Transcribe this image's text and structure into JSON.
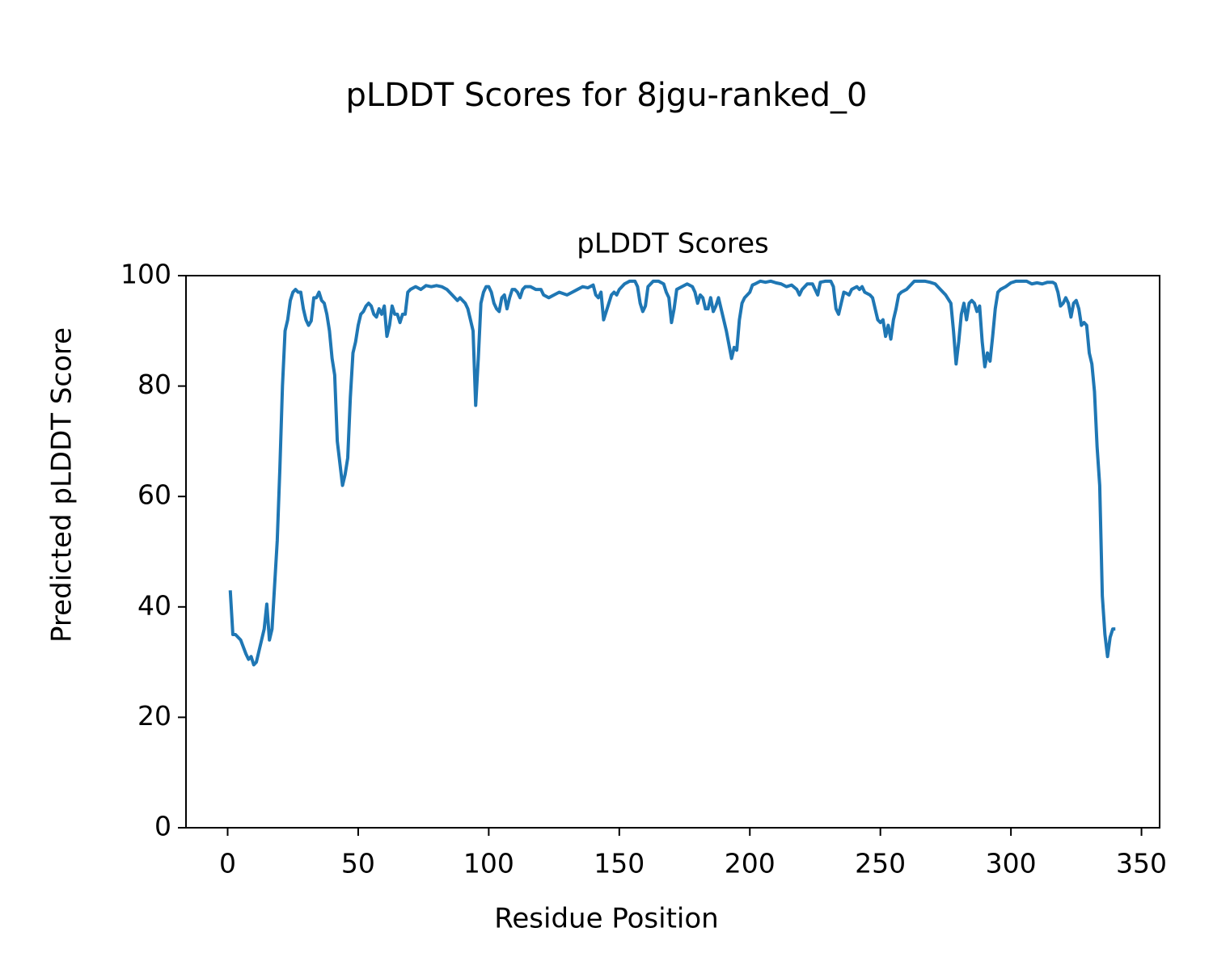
{
  "chart_data": {
    "type": "line",
    "title": "pLDDT Scores for 8jgu-ranked_0",
    "subtitle": "pLDDT Scores",
    "x_label": "Residue Position",
    "y_label": "Predicted pLDDT Score",
    "color": "#1f77b4",
    "grid": false,
    "xlim": [
      -15.95,
      356.95
    ],
    "ylim": [
      0,
      100
    ],
    "xticks": [
      0,
      50,
      100,
      150,
      200,
      250,
      300,
      350
    ],
    "yticks": [
      0,
      20,
      40,
      60,
      80,
      100
    ],
    "x": [
      1,
      2,
      3,
      5,
      7,
      8,
      9,
      10,
      11,
      12,
      13,
      14,
      15,
      16,
      17,
      18,
      19,
      20,
      21,
      22,
      23,
      24,
      25,
      26,
      27,
      28,
      29,
      30,
      31,
      32,
      33,
      34,
      35,
      36,
      37,
      38,
      39,
      40,
      41,
      42,
      43,
      44,
      45,
      46,
      47,
      48,
      49,
      50,
      51,
      52,
      53,
      54,
      55,
      56,
      57,
      58,
      59,
      60,
      61,
      62,
      63,
      64,
      65,
      66,
      67,
      68,
      69,
      70,
      72,
      74,
      76,
      78,
      80,
      82,
      84,
      86,
      88,
      89,
      91,
      92,
      93,
      94,
      95,
      96,
      97,
      98,
      99,
      100,
      101,
      102,
      103,
      104,
      105,
      106,
      107,
      108,
      109,
      110,
      111,
      112,
      113,
      114,
      116,
      118,
      120,
      121,
      123,
      125,
      127,
      130,
      132,
      134,
      136,
      138,
      140,
      141,
      142,
      143,
      144,
      146,
      147,
      148,
      149,
      150,
      152,
      154,
      156,
      157,
      158,
      159,
      160,
      161,
      163,
      165,
      167,
      168,
      169,
      170,
      171,
      172,
      174,
      176,
      178,
      179,
      180,
      181,
      182,
      183,
      184,
      185,
      186,
      187,
      188,
      190,
      191,
      193,
      194,
      195,
      196,
      197,
      198,
      200,
      201,
      202,
      204,
      206,
      208,
      210,
      212,
      214,
      216,
      218,
      219,
      220,
      222,
      224,
      225,
      226,
      227,
      229,
      231,
      232,
      233,
      234,
      235,
      236,
      237,
      238,
      239,
      241,
      242,
      243,
      244,
      246,
      247,
      248,
      249,
      250,
      251,
      252,
      253,
      254,
      255,
      256,
      257,
      258,
      260,
      262,
      263,
      265,
      267,
      269,
      271,
      273,
      275,
      277,
      278,
      279,
      280,
      281,
      282,
      283,
      284,
      285,
      286,
      287,
      288,
      289,
      290,
      291,
      292,
      293,
      294,
      295,
      296,
      298,
      300,
      302,
      304,
      306,
      308,
      310,
      312,
      314,
      316,
      317,
      318,
      319,
      320,
      321,
      322,
      323,
      324,
      325,
      326,
      327,
      328,
      329,
      330,
      331,
      332,
      333,
      334,
      335,
      336,
      337,
      338,
      339,
      340
    ],
    "values": [
      43,
      35,
      35,
      34,
      31.5,
      30.5,
      31,
      29.5,
      30,
      32,
      34,
      36,
      40.5,
      34,
      36,
      44,
      52,
      65,
      80,
      90,
      92,
      95.5,
      97,
      97.5,
      97,
      97,
      94,
      92,
      91,
      91.8,
      96,
      96,
      97,
      95.5,
      95,
      93,
      90,
      85,
      82,
      70,
      66,
      62,
      64,
      67,
      78,
      86,
      88,
      91,
      93,
      93.5,
      94.5,
      95,
      94.5,
      93,
      92.5,
      94,
      93,
      94.5,
      89,
      91,
      94.5,
      93,
      93,
      91.5,
      93,
      93,
      97,
      97.5,
      98,
      97.5,
      98.2,
      98,
      98.2,
      98,
      97.5,
      96.5,
      95.5,
      96,
      95,
      94,
      92,
      90,
      76.5,
      85,
      95,
      97,
      98,
      98,
      97,
      95,
      94,
      93.5,
      96,
      96.5,
      94,
      96,
      97.5,
      97.5,
      97,
      96,
      97.5,
      98,
      98,
      97.5,
      97.5,
      96.5,
      96,
      96.5,
      97,
      96.5,
      97,
      97.5,
      98,
      97.8,
      98.3,
      96.5,
      96,
      97,
      92,
      95,
      96.5,
      97,
      96.5,
      97.5,
      98.5,
      99,
      99,
      98,
      95,
      93.5,
      94.5,
      98,
      99,
      99,
      98.5,
      97,
      96,
      91.5,
      94,
      97.5,
      98,
      98.5,
      98,
      97,
      95,
      96.5,
      96,
      94,
      94,
      96,
      93.5,
      94.5,
      96,
      92,
      90,
      85,
      87,
      86.5,
      92,
      95,
      96,
      97,
      98.3,
      98.5,
      99,
      98.8,
      99,
      98.7,
      98.5,
      98,
      98.3,
      97.5,
      96.5,
      97.5,
      98.5,
      98.5,
      97.5,
      96.5,
      98.8,
      99,
      99,
      98,
      94,
      93,
      95,
      97,
      96.8,
      96.5,
      97.5,
      98,
      97.5,
      98,
      97,
      96.5,
      96,
      94,
      92,
      91.5,
      92,
      89,
      91,
      88.5,
      92,
      94,
      96.5,
      97,
      97.5,
      98.5,
      99,
      99,
      99,
      98.8,
      98.5,
      97.5,
      96.5,
      95,
      90,
      84,
      88,
      93,
      95,
      92,
      95,
      95.5,
      95,
      93.5,
      94.5,
      88,
      83.5,
      86,
      84.5,
      89,
      94,
      97,
      97.5,
      98,
      98.7,
      99,
      99,
      99,
      98.5,
      98.7,
      98.5,
      98.8,
      98.8,
      98.5,
      97,
      94.5,
      95,
      96,
      95,
      92.5,
      95,
      95.5,
      94,
      91,
      91.5,
      91,
      86,
      84,
      79,
      69,
      62,
      42,
      35,
      31,
      34.5,
      36,
      36
    ]
  }
}
